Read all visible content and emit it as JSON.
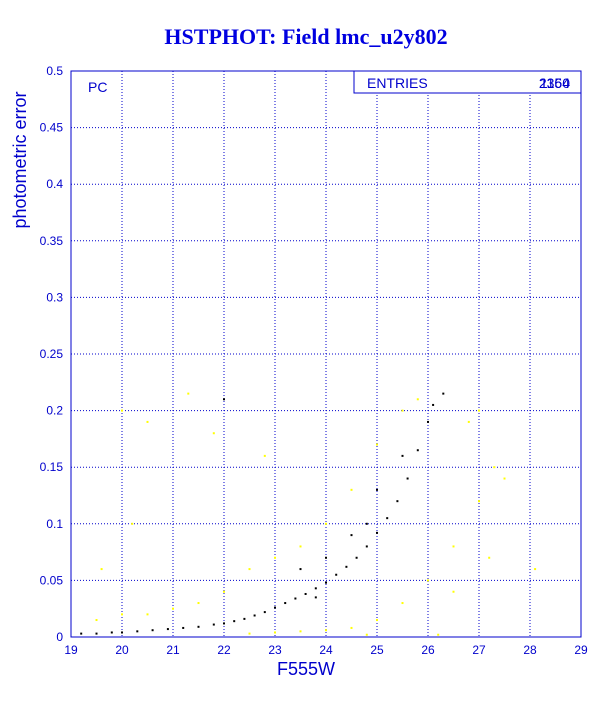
{
  "title": "HSTPHOT: Field lmc_u2y802",
  "chart_data": {
    "type": "scatter",
    "title": "HSTPHOT: Field lmc_u2y802",
    "xlabel": "F555W",
    "ylabel": "photometric error",
    "xlim": [
      19,
      29
    ],
    "ylim": [
      0,
      0.5
    ],
    "x_ticks": [
      "19",
      "20",
      "21",
      "22",
      "23",
      "24",
      "25",
      "26",
      "27",
      "28",
      "29"
    ],
    "y_ticks": [
      "0",
      "0.05",
      "0.1",
      "0.15",
      "0.2",
      "0.25",
      "0.3",
      "0.35",
      "0.4",
      "0.45",
      "0.5"
    ],
    "grid": true,
    "panel_label": "PC",
    "stats_box": {
      "label": "ENTRIES",
      "values": [
        "2364",
        "1150"
      ]
    },
    "colors": {
      "axes": "#0000cc",
      "grid": "#0000cc",
      "black_series": "#000000",
      "yellow_series": "#ffff00"
    },
    "series": [
      {
        "color": "#000000",
        "note_visible": false,
        "points": [
          [
            19.2,
            0.003
          ],
          [
            19.5,
            0.003
          ],
          [
            19.8,
            0.004
          ],
          [
            20.0,
            0.004
          ],
          [
            20.3,
            0.005
          ],
          [
            20.6,
            0.006
          ],
          [
            20.9,
            0.007
          ],
          [
            21.2,
            0.008
          ],
          [
            21.5,
            0.009
          ],
          [
            21.8,
            0.011
          ],
          [
            22.0,
            0.012
          ],
          [
            22.2,
            0.014
          ],
          [
            22.4,
            0.016
          ],
          [
            22.6,
            0.019
          ],
          [
            22.8,
            0.022
          ],
          [
            23.0,
            0.026
          ],
          [
            23.2,
            0.03
          ],
          [
            23.4,
            0.034
          ],
          [
            23.6,
            0.038
          ],
          [
            23.8,
            0.043
          ],
          [
            24.0,
            0.048
          ],
          [
            24.2,
            0.055
          ],
          [
            24.4,
            0.062
          ],
          [
            24.6,
            0.07
          ],
          [
            24.8,
            0.08
          ],
          [
            25.0,
            0.092
          ],
          [
            25.2,
            0.105
          ],
          [
            25.4,
            0.12
          ],
          [
            25.6,
            0.14
          ],
          [
            25.8,
            0.165
          ],
          [
            26.0,
            0.19
          ],
          [
            26.1,
            0.205
          ],
          [
            22.0,
            0.21
          ],
          [
            26.3,
            0.215
          ],
          [
            23.5,
            0.06
          ],
          [
            24.0,
            0.07
          ],
          [
            24.5,
            0.09
          ],
          [
            25.0,
            0.13
          ],
          [
            25.5,
            0.16
          ],
          [
            24.8,
            0.1
          ],
          [
            23.8,
            0.035
          ]
        ]
      },
      {
        "color": "#ffff00",
        "points": [
          [
            19.5,
            0.015
          ],
          [
            20.0,
            0.02
          ],
          [
            20.5,
            0.02
          ],
          [
            21.0,
            0.025
          ],
          [
            21.5,
            0.03
          ],
          [
            22.0,
            0.04
          ],
          [
            22.5,
            0.06
          ],
          [
            23.0,
            0.07
          ],
          [
            23.5,
            0.08
          ],
          [
            24.0,
            0.1
          ],
          [
            24.5,
            0.13
          ],
          [
            25.0,
            0.17
          ],
          [
            25.5,
            0.2
          ],
          [
            25.8,
            0.21
          ],
          [
            22.5,
            0.003
          ],
          [
            23.0,
            0.004
          ],
          [
            23.5,
            0.005
          ],
          [
            24.0,
            0.006
          ],
          [
            24.5,
            0.008
          ],
          [
            25.0,
            0.015
          ],
          [
            25.5,
            0.03
          ],
          [
            26.0,
            0.05
          ],
          [
            26.5,
            0.08
          ],
          [
            27.0,
            0.12
          ],
          [
            27.3,
            0.15
          ],
          [
            27.5,
            0.14
          ],
          [
            20.0,
            0.2
          ],
          [
            20.5,
            0.19
          ],
          [
            21.3,
            0.215
          ],
          [
            21.8,
            0.18
          ],
          [
            22.8,
            0.16
          ],
          [
            20.2,
            0.1
          ],
          [
            19.6,
            0.06
          ],
          [
            26.8,
            0.19
          ],
          [
            27.0,
            0.2
          ],
          [
            26.5,
            0.04
          ],
          [
            27.2,
            0.07
          ],
          [
            28.1,
            0.06
          ],
          [
            26.2,
            0.002
          ],
          [
            24.8,
            0.002
          ]
        ]
      }
    ]
  }
}
